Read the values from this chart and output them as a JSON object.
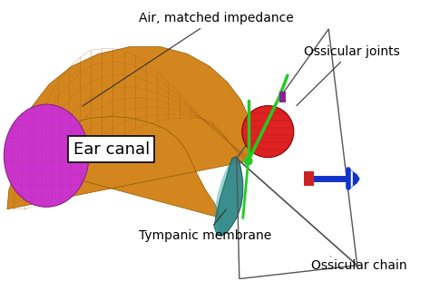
{
  "background_color": "#ffffff",
  "ear_canal_color": "#D4861E",
  "ear_canal_edge_color": "#8B5A00",
  "air_sphere_color": "#CC33CC",
  "air_sphere_edge_color": "#882288",
  "tympanic_color": "#2A8585",
  "tympanic_edge_color": "#1A5555",
  "ossicular_joints_color": "#DD2222",
  "green_line_color": "#22CC22",
  "blue_element_color": "#1133CC",
  "red_element_color": "#CC2222",
  "purple_element_color": "#882299",
  "mesh_color": "#A06010",
  "triangle_color": "#555555",
  "annotations": {
    "air_matched": "Air, matched impedance",
    "ear_canal": "Ear canal",
    "tympanic": "Tympanic membrane",
    "ossicular_joints": "Ossicular joints",
    "ossicular_chain": "Ossicular chain"
  },
  "ann_fontsize": 10,
  "ear_canal_fontsize": 13
}
